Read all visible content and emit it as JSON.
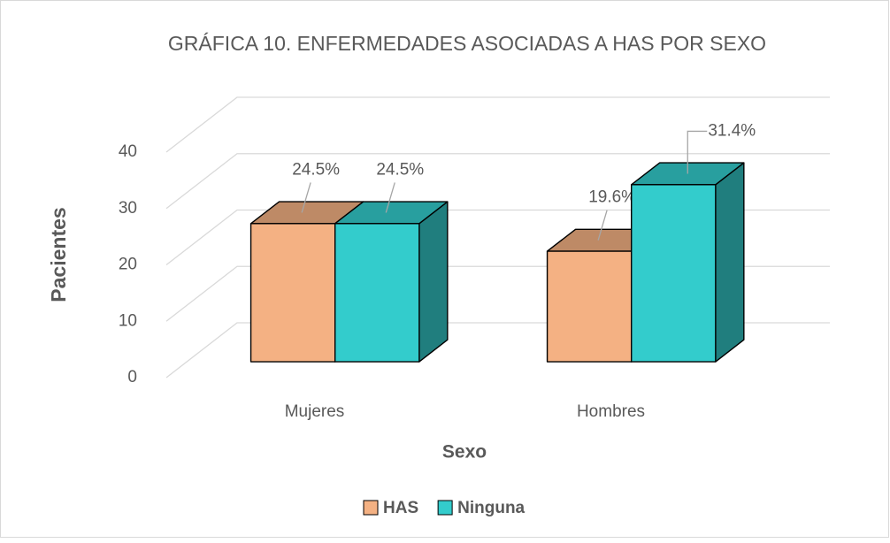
{
  "chart_data": {
    "type": "bar3d",
    "title": "GRÁFICA 10. ENFERMEDADES ASOCIADAS A HAS POR SEXO",
    "x_label": "Sexo",
    "y_label": "Pacientes",
    "categories": [
      "Mujeres",
      "Hombres"
    ],
    "series": [
      {
        "name": "HAS",
        "color": "#F4B183",
        "values": [
          24.5,
          19.6
        ],
        "value_labels": [
          "24.5%",
          "19.6%"
        ]
      },
      {
        "name": "Ninguna",
        "color": "#33CCCC",
        "values": [
          24.5,
          31.4
        ],
        "value_labels": [
          "24.5%",
          "31.4%"
        ]
      }
    ],
    "ylim": [
      0,
      40
    ],
    "yticks": [
      0,
      10,
      20,
      30,
      40
    ],
    "grid": true,
    "legend": "bottom"
  }
}
